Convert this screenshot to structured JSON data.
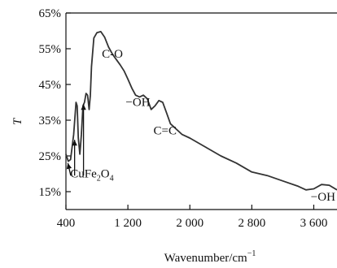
{
  "chart_data": {
    "type": "line",
    "xlabel": "Wavenumber/cm",
    "xlabel_sup": "−1",
    "ylabel": "T",
    "xlim": [
      400,
      3900
    ],
    "ylim": [
      10,
      65
    ],
    "xticks": [
      {
        "value": 400,
        "label": "400"
      },
      {
        "value": 1200,
        "label": "1 200"
      },
      {
        "value": 2000,
        "label": "2 000"
      },
      {
        "value": 2800,
        "label": "2 800"
      },
      {
        "value": 3600,
        "label": "3 600"
      }
    ],
    "yticks": [
      {
        "value": 15,
        "label": "15%"
      },
      {
        "value": 25,
        "label": "25%"
      },
      {
        "value": 35,
        "label": "35%"
      },
      {
        "value": 45,
        "label": "45%"
      },
      {
        "value": 55,
        "label": "55%"
      },
      {
        "value": 65,
        "label": "65%"
      }
    ],
    "grid": false,
    "series": [
      {
        "x": [
          400,
          430,
          460,
          500,
          530,
          545,
          560,
          580,
          600,
          620,
          640,
          660,
          680,
          700,
          715,
          730,
          760,
          800,
          850,
          900,
          950,
          1000,
          1050,
          1100,
          1150,
          1200,
          1250,
          1300,
          1350,
          1400,
          1450,
          1500,
          1550,
          1600,
          1650,
          1700,
          1750,
          1800,
          1900,
          2000,
          2200,
          2400,
          2600,
          2800,
          3000,
          3200,
          3400,
          3500,
          3600,
          3700,
          3800,
          3900
        ],
        "y": [
          25.5,
          23.5,
          24,
          31,
          40,
          39,
          30,
          25.5,
          31,
          39,
          40,
          42.5,
          42,
          38,
          42,
          50,
          58,
          59.5,
          59.8,
          58.2,
          55.5,
          53.5,
          52,
          50.5,
          48.8,
          46.5,
          44,
          42,
          41.5,
          42,
          41,
          38,
          39,
          40.5,
          40,
          37,
          34,
          33,
          31,
          30,
          27.5,
          25,
          23,
          20.5,
          19.5,
          18,
          16.5,
          15.5,
          15.8,
          17,
          16.8,
          15.5
        ]
      }
    ],
    "annotations": [
      {
        "text": "C-O",
        "x": 1000,
        "y": 52.5
      },
      {
        "text": "−OH",
        "x": 1330,
        "y": 39
      },
      {
        "text": "C=C",
        "x": 1680,
        "y": 31
      },
      {
        "text": "−OH",
        "x": 3720,
        "y": 12.5
      }
    ],
    "compound": {
      "parts": [
        "CuFe",
        "2",
        "O",
        "4"
      ],
      "x": 455,
      "y": 19,
      "arrows": [
        {
          "from": [
            462,
            19.5
          ],
          "to": [
            425,
            23
          ]
        },
        {
          "from": [
            512,
            19.5
          ],
          "to": [
            512,
            29.5
          ]
        },
        {
          "from": [
            627,
            19.5
          ],
          "to": [
            627,
            39.5
          ]
        }
      ]
    }
  }
}
